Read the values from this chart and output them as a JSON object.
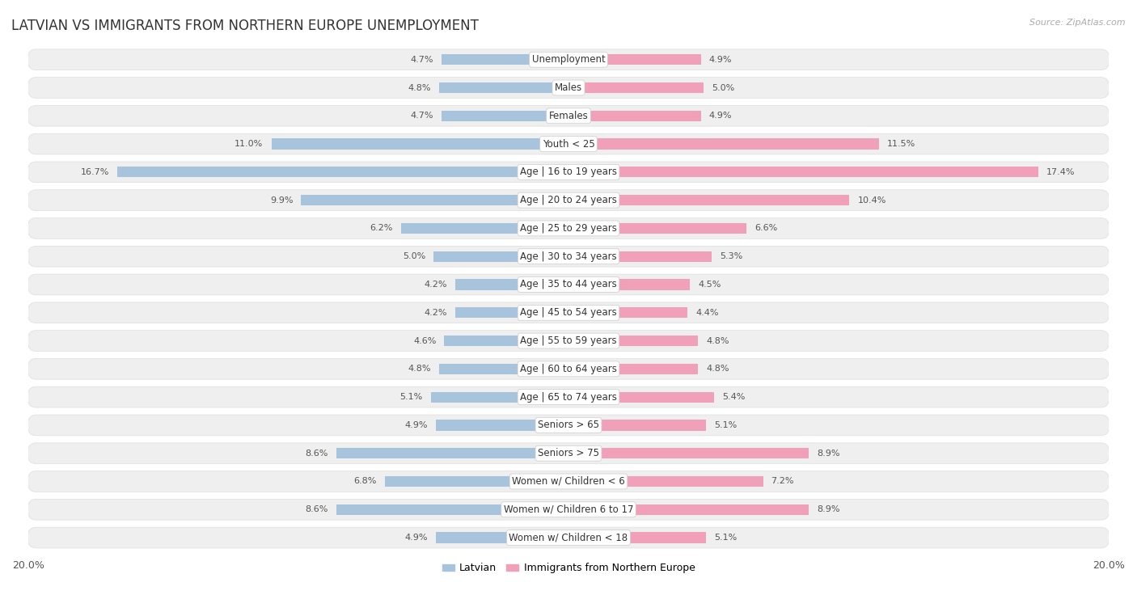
{
  "title": "LATVIAN VS IMMIGRANTS FROM NORTHERN EUROPE UNEMPLOYMENT",
  "source": "Source: ZipAtlas.com",
  "categories": [
    "Unemployment",
    "Males",
    "Females",
    "Youth < 25",
    "Age | 16 to 19 years",
    "Age | 20 to 24 years",
    "Age | 25 to 29 years",
    "Age | 30 to 34 years",
    "Age | 35 to 44 years",
    "Age | 45 to 54 years",
    "Age | 55 to 59 years",
    "Age | 60 to 64 years",
    "Age | 65 to 74 years",
    "Seniors > 65",
    "Seniors > 75",
    "Women w/ Children < 6",
    "Women w/ Children 6 to 17",
    "Women w/ Children < 18"
  ],
  "latvian": [
    4.7,
    4.8,
    4.7,
    11.0,
    16.7,
    9.9,
    6.2,
    5.0,
    4.2,
    4.2,
    4.6,
    4.8,
    5.1,
    4.9,
    8.6,
    6.8,
    8.6,
    4.9
  ],
  "immigrants": [
    4.9,
    5.0,
    4.9,
    11.5,
    17.4,
    10.4,
    6.6,
    5.3,
    4.5,
    4.4,
    4.8,
    4.8,
    5.4,
    5.1,
    8.9,
    7.2,
    8.9,
    5.1
  ],
  "latvian_color": "#a8c4dc",
  "immigrant_color": "#f0a0b8",
  "latvian_label": "Latvian",
  "immigrant_label": "Immigrants from Northern Europe",
  "axis_max": 20.0,
  "bg_color": "#ffffff",
  "row_bg_color": "#efefef",
  "row_border_color": "#dedede",
  "title_fontsize": 12,
  "label_fontsize": 8.5,
  "value_fontsize": 8.0
}
